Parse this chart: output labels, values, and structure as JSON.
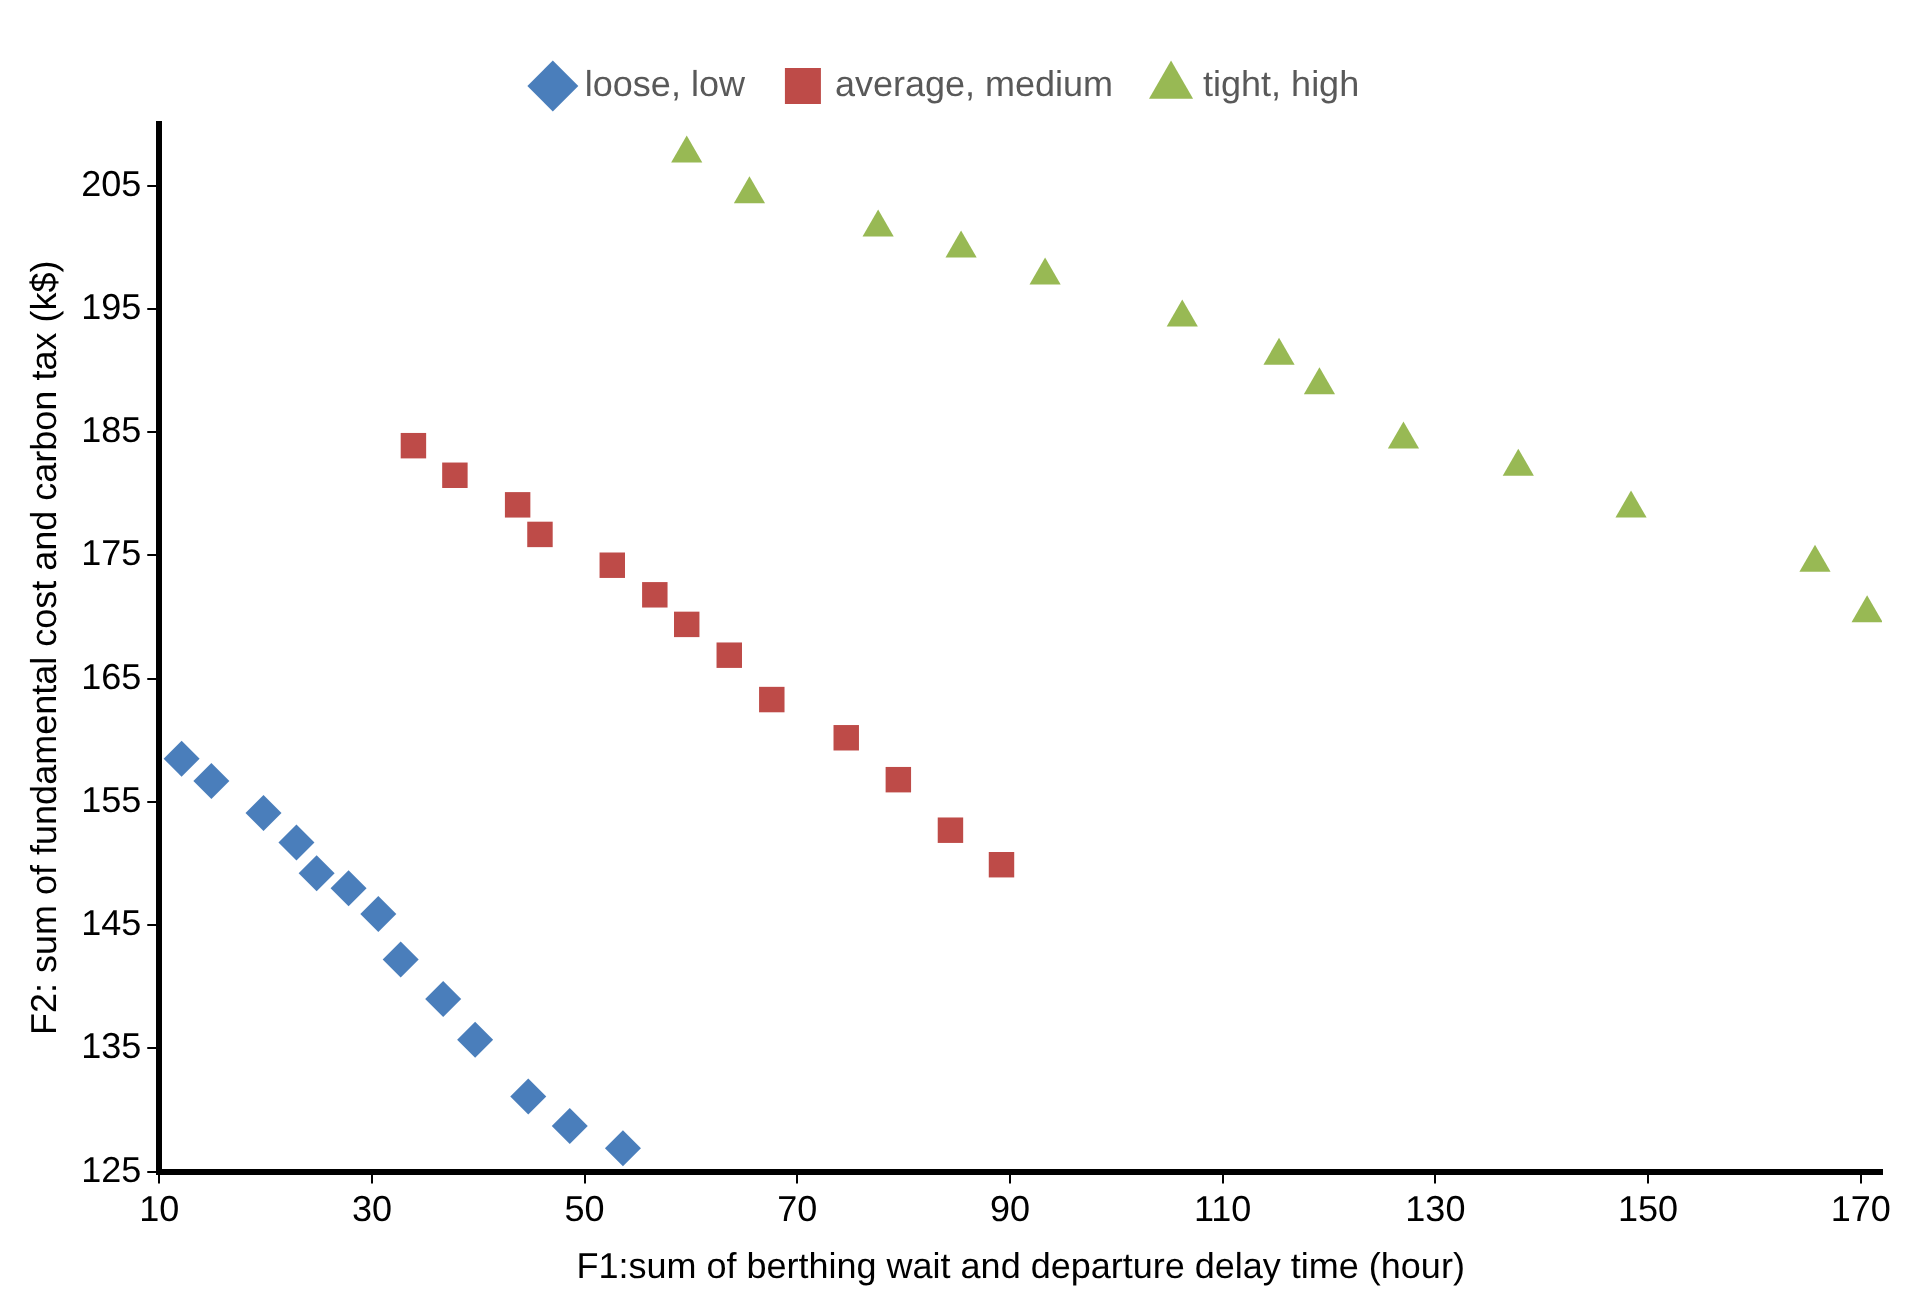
{
  "chart_data": {
    "type": "scatter",
    "xlabel": "F1:sum of berthing wait and departure delay time (hour)",
    "ylabel": "F2: sum of fundamental cost and carbon tax (k$)",
    "xlim": [
      10,
      172
    ],
    "xticks": [
      10,
      30,
      50,
      70,
      90,
      110,
      130,
      150,
      170
    ],
    "ylim": [
      125,
      210
    ],
    "yticks": [
      125,
      135,
      145,
      155,
      165,
      175,
      185,
      195,
      205
    ],
    "grid": false,
    "legend": "top",
    "series": [
      {
        "name": "loose, low",
        "color": "#4a7ebb",
        "marker": "diamond",
        "x": [
          12.1,
          14.9,
          19.8,
          22.9,
          24.8,
          27.8,
          30.6,
          32.7,
          36.7,
          39.7,
          44.7,
          48.6,
          53.6
        ],
        "values": [
          158.5,
          156.7,
          154.1,
          151.7,
          149.2,
          148.0,
          145.9,
          142.2,
          139.0,
          135.7,
          131.1,
          128.7,
          126.9
        ]
      },
      {
        "name": "average, medium",
        "color": "#be4b48",
        "marker": "square",
        "x": [
          33.9,
          37.8,
          43.7,
          45.8,
          52.6,
          56.6,
          59.6,
          63.6,
          67.6,
          74.6,
          79.5,
          84.4,
          89.2
        ],
        "values": [
          183.9,
          181.5,
          179.1,
          176.7,
          174.2,
          171.8,
          169.4,
          166.9,
          163.3,
          160.2,
          156.8,
          152.7,
          149.9
        ]
      },
      {
        "name": "tight, high",
        "color": "#98b954",
        "marker": "triangle",
        "x": [
          59.6,
          65.5,
          77.6,
          85.4,
          93.3,
          106.2,
          115.3,
          119.1,
          127.0,
          137.8,
          148.4,
          165.7,
          170.6
        ],
        "values": [
          207.6,
          204.3,
          201.6,
          199.9,
          197.7,
          194.3,
          191.2,
          188.8,
          184.4,
          182.2,
          178.8,
          174.4,
          170.3
        ]
      }
    ]
  }
}
